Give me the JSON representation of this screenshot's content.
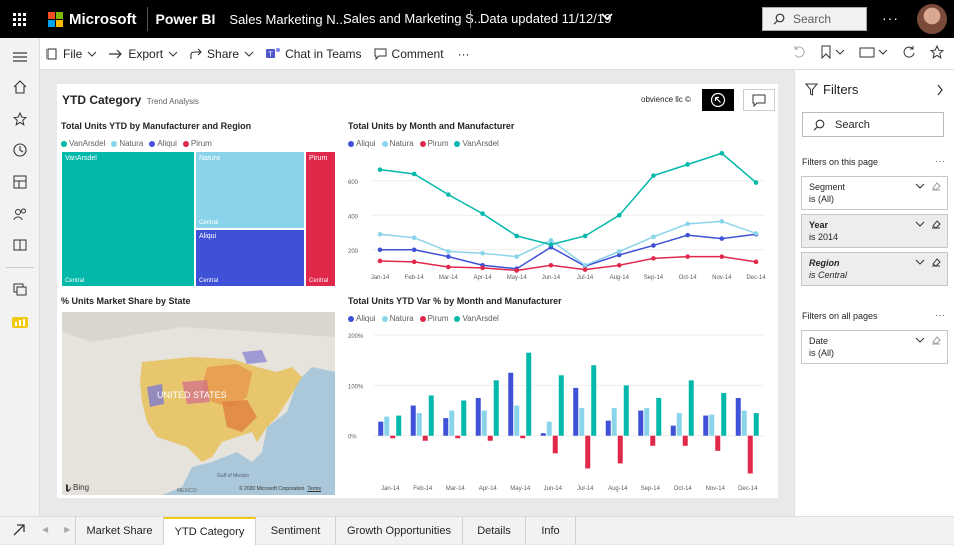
{
  "topbar": {
    "brand": "Microsoft",
    "product": "Power BI",
    "workspace": "Sales Marketing N...",
    "report": "Sales and Marketing S...",
    "data_updated": "Data updated 11/12/19",
    "search_placeholder": "Search",
    "more": "···"
  },
  "toolbar": {
    "file": "File",
    "export": "Export",
    "share": "Share",
    "chat": "Chat in Teams",
    "comment": "Comment",
    "more": "···"
  },
  "page": {
    "title": "YTD Category",
    "subtitle": "Trend Analysis",
    "company": "obvience llc ©"
  },
  "treemap": {
    "title": "Total Units YTD by Manufacturer and Region",
    "legend": [
      "VanArsdel",
      "Natura",
      "Aliqui",
      "Pirum"
    ],
    "cells": [
      {
        "name": "VanArsdel",
        "region": "Central",
        "color": "#01b8aa"
      },
      {
        "name": "Natura",
        "region": "Central",
        "color": "#8ad4eb"
      },
      {
        "name": "Aliqui",
        "region": "Central",
        "color": "#3f51d6"
      },
      {
        "name": "Pirum",
        "region": "Central",
        "color": "#e0284a"
      }
    ]
  },
  "map": {
    "title": "% Units Market Share by State",
    "country_label": "UNITED STATES",
    "mexico_label": "MEXICO",
    "gulf_label": "Gulf of Mexico",
    "bing": "Bing",
    "copyright": "© 2020 Microsoft Corporation",
    "terms": "Terms"
  },
  "chart_data": [
    {
      "type": "line",
      "title": "Total Units by Month and Manufacturer",
      "categories": [
        "Jan-14",
        "Feb-14",
        "Mar-14",
        "Apr-14",
        "May-14",
        "Jun-14",
        "Jul-14",
        "Aug-14",
        "Sep-14",
        "Oct-14",
        "Nov-14",
        "Dec-14"
      ],
      "y_ticks": [
        "200",
        "400",
        "600"
      ],
      "ylim": [
        100,
        750
      ],
      "series": [
        {
          "name": "Aliqui",
          "color": "#3f51d6",
          "values": [
            200,
            200,
            160,
            110,
            90,
            215,
            105,
            170,
            225,
            285,
            265,
            290
          ]
        },
        {
          "name": "Natura",
          "color": "#8ad4eb",
          "values": [
            290,
            270,
            190,
            180,
            160,
            255,
            110,
            190,
            275,
            350,
            365,
            295
          ]
        },
        {
          "name": "Pirum",
          "color": "#e0284a",
          "values": [
            135,
            130,
            100,
            95,
            80,
            110,
            85,
            110,
            150,
            160,
            160,
            130
          ]
        },
        {
          "name": "VanArsdel",
          "color": "#01b8aa",
          "values": [
            665,
            640,
            520,
            410,
            280,
            230,
            280,
            400,
            630,
            695,
            760,
            590
          ]
        }
      ]
    },
    {
      "type": "bar",
      "title": "Total Units YTD Var % by Month and Manufacturer",
      "categories": [
        "Jan-14",
        "Feb-14",
        "Mar-14",
        "Apr-14",
        "May-14",
        "Jun-14",
        "Jul-14",
        "Aug-14",
        "Sep-14",
        "Oct-14",
        "Nov-14",
        "Dec-14"
      ],
      "y_ticks": [
        "0%",
        "100%",
        "200%"
      ],
      "ylim": [
        -80,
        210
      ],
      "series": [
        {
          "name": "Aliqui",
          "color": "#3f51d6",
          "values": [
            28,
            60,
            35,
            75,
            125,
            5,
            95,
            30,
            50,
            20,
            40,
            75
          ]
        },
        {
          "name": "Natura",
          "color": "#8ad4eb",
          "values": [
            38,
            45,
            50,
            50,
            60,
            28,
            55,
            55,
            55,
            45,
            42,
            50
          ]
        },
        {
          "name": "Pirum",
          "color": "#e0284a",
          "values": [
            -5,
            -10,
            -5,
            -10,
            -5,
            -35,
            -65,
            -55,
            -20,
            -20,
            -30,
            -75
          ]
        },
        {
          "name": "VanArsdel",
          "color": "#01b8aa",
          "values": [
            40,
            80,
            70,
            110,
            165,
            120,
            140,
            100,
            75,
            110,
            85,
            45
          ]
        }
      ]
    }
  ],
  "filters": {
    "title": "Filters",
    "search": "Search",
    "on_page": "Filters on this page",
    "on_all": "Filters on all pages",
    "cards": [
      {
        "name": "Segment",
        "value": "is (All)"
      },
      {
        "name": "Year",
        "value": "is 2014"
      },
      {
        "name": "Region",
        "value": "is Central"
      }
    ],
    "all_cards": [
      {
        "name": "Date",
        "value": "is (All)"
      }
    ]
  },
  "tabs": [
    "Market Share",
    "YTD Category",
    "Sentiment",
    "Growth Opportunities",
    "Details",
    "Info"
  ],
  "active_tab": "YTD Category"
}
